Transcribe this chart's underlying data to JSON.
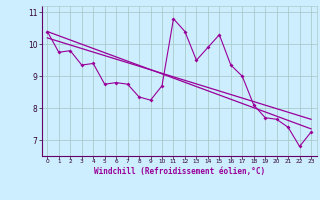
{
  "xlabel": "Windchill (Refroidissement éolien,°C)",
  "background_color": "#cceeff",
  "line_color": "#990099",
  "grid_color": "#aacccc",
  "hours": [
    0,
    1,
    2,
    3,
    4,
    5,
    6,
    7,
    8,
    9,
    10,
    11,
    12,
    13,
    14,
    15,
    16,
    17,
    18,
    19,
    20,
    21,
    22,
    23
  ],
  "windchill": [
    10.4,
    9.75,
    9.8,
    9.35,
    9.4,
    8.75,
    8.8,
    8.75,
    8.35,
    8.25,
    8.7,
    10.8,
    10.4,
    9.5,
    9.9,
    10.3,
    9.35,
    9.0,
    8.1,
    7.7,
    7.65,
    7.4,
    6.8,
    7.25
  ],
  "trend1_x": [
    0,
    23
  ],
  "trend1_y": [
    10.4,
    7.35
  ],
  "trend2_x": [
    0,
    23
  ],
  "trend2_y": [
    10.2,
    7.65
  ],
  "ylim": [
    6.5,
    11.2
  ],
  "xlim": [
    -0.5,
    23.5
  ],
  "yticks": [
    7,
    8,
    9,
    10,
    11
  ],
  "xtick_labels": [
    "0",
    "1",
    "2",
    "3",
    "4",
    "5",
    "6",
    "7",
    "8",
    "9",
    "10",
    "11",
    "12",
    "13",
    "14",
    "15",
    "16",
    "17",
    "18",
    "19",
    "20",
    "21",
    "22",
    "23"
  ]
}
